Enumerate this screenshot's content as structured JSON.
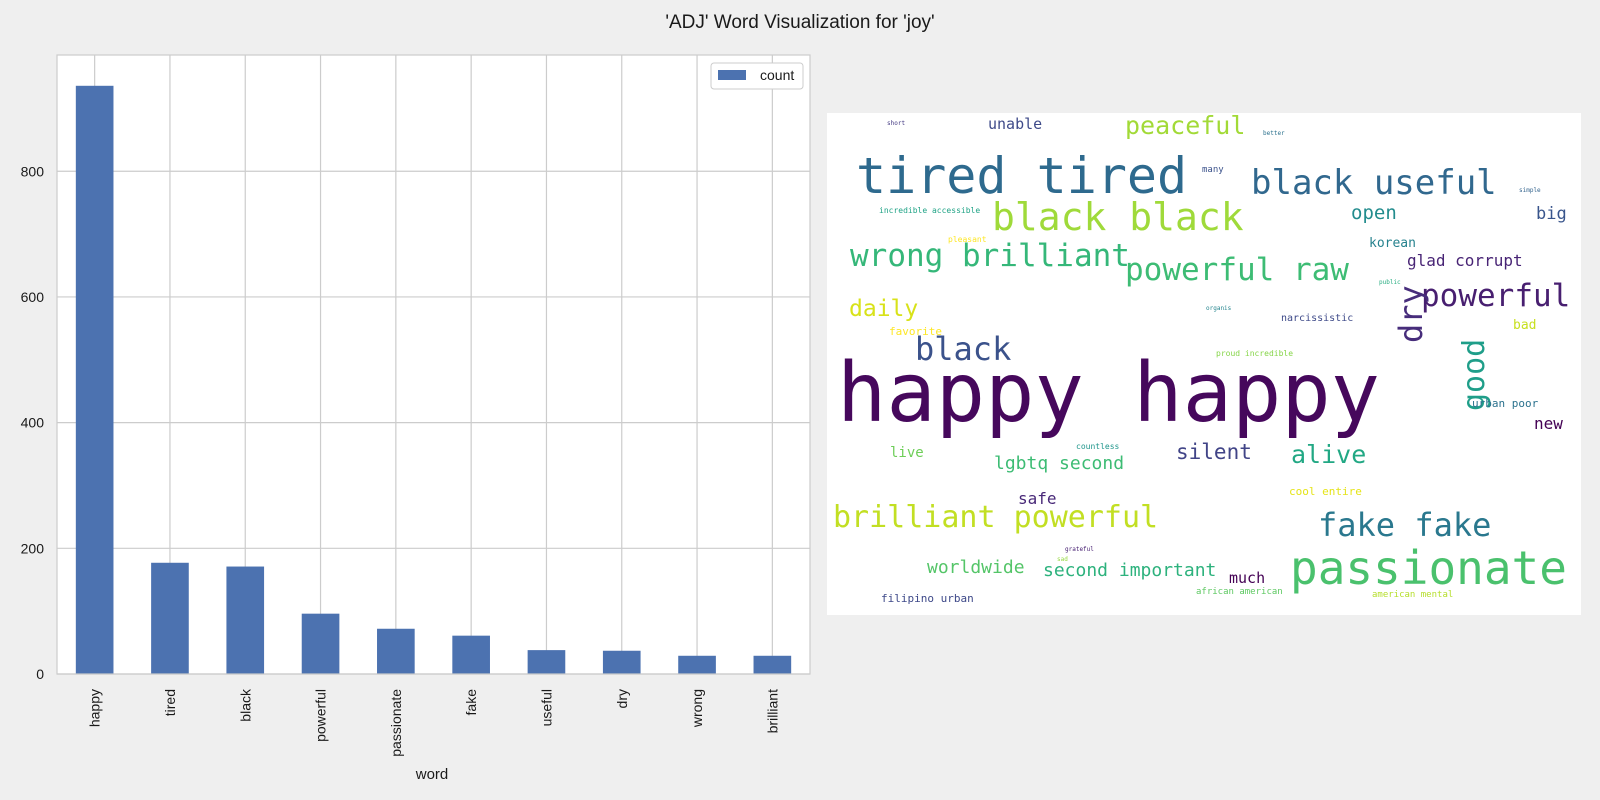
{
  "figure": {
    "title": "'ADJ' Word Visualization for 'joy'"
  },
  "chart_data": {
    "type": "bar",
    "categories": [
      "happy",
      "tired",
      "black",
      "powerful",
      "passionate",
      "fake",
      "useful",
      "dry",
      "wrong",
      "brilliant"
    ],
    "series": [
      {
        "name": "count",
        "values": [
          936,
          177,
          171,
          96,
          72,
          61,
          38,
          37,
          29,
          29
        ],
        "color": "#4c72b0"
      }
    ],
    "xlabel": "word",
    "ylabel": "",
    "ylim": [
      0,
      985
    ],
    "yticks": [
      0,
      200,
      400,
      600,
      800
    ],
    "grid": true,
    "legend": "top-right"
  },
  "wordcloud": {
    "words": [
      {
        "text": "happy happy",
        "color": "#46085c"
      },
      {
        "text": "passionate",
        "color": "#4ac16d"
      },
      {
        "text": "tired tired",
        "color": "#2e6a8e"
      },
      {
        "text": "black black",
        "color": "#9fda3a"
      },
      {
        "text": "black useful",
        "color": "#31688e"
      },
      {
        "text": "wrong brilliant",
        "color": "#35b779"
      },
      {
        "text": "powerful raw",
        "color": "#3dbc74"
      },
      {
        "text": "brilliant powerful",
        "color": "#c2df23"
      },
      {
        "text": "fake fake",
        "color": "#2a788e"
      },
      {
        "text": "powerful",
        "color": "#481f70"
      },
      {
        "text": "black",
        "color": "#3b528b"
      },
      {
        "text": "dry",
        "color": "#472d7b"
      },
      {
        "text": "good",
        "color": "#1f9e89"
      },
      {
        "text": "peaceful",
        "color": "#a2da37"
      },
      {
        "text": "alive",
        "color": "#22a884"
      },
      {
        "text": "daily",
        "color": "#d8e219"
      },
      {
        "text": "silent",
        "color": "#414487"
      },
      {
        "text": "lgbtq second",
        "color": "#3dbc74"
      },
      {
        "text": "second important",
        "color": "#2db27d"
      },
      {
        "text": "worldwide",
        "color": "#54c568"
      },
      {
        "text": "glad corrupt",
        "color": "#482475"
      },
      {
        "text": "open",
        "color": "#228c8d"
      },
      {
        "text": "unable",
        "color": "#3e4a89"
      },
      {
        "text": "big",
        "color": "#39558c"
      },
      {
        "text": "safe",
        "color": "#482878"
      },
      {
        "text": "much",
        "color": "#440154"
      },
      {
        "text": "new",
        "color": "#440154"
      },
      {
        "text": "korean",
        "color": "#26828e"
      },
      {
        "text": "live",
        "color": "#6ece58"
      },
      {
        "text": "bad",
        "color": "#c8e020"
      },
      {
        "text": "narcissistic",
        "color": "#3e4a89"
      },
      {
        "text": "filipino urban",
        "color": "#3e4989"
      },
      {
        "text": "urban poor",
        "color": "#2c728e"
      },
      {
        "text": "cool entire",
        "color": "#e5e419"
      },
      {
        "text": "favorite",
        "color": "#fde725"
      },
      {
        "text": "african american",
        "color": "#5ec962"
      },
      {
        "text": "american mental",
        "color": "#b5de2b"
      },
      {
        "text": "proud incredible",
        "color": "#86d549"
      },
      {
        "text": "incredible accessible",
        "color": "#20a386"
      },
      {
        "text": "pleasant",
        "color": "#fde725"
      },
      {
        "text": "many",
        "color": "#3b528b"
      },
      {
        "text": "countless",
        "color": "#1f968b"
      },
      {
        "text": "better",
        "color": "#2c728e"
      },
      {
        "text": "short",
        "color": "#443a83"
      },
      {
        "text": "simple",
        "color": "#33638d"
      },
      {
        "text": "public",
        "color": "#27ad81"
      },
      {
        "text": "organis",
        "color": "#25858e"
      },
      {
        "text": "grateful",
        "color": "#482173"
      },
      {
        "text": "sad",
        "color": "#95d840"
      }
    ]
  }
}
